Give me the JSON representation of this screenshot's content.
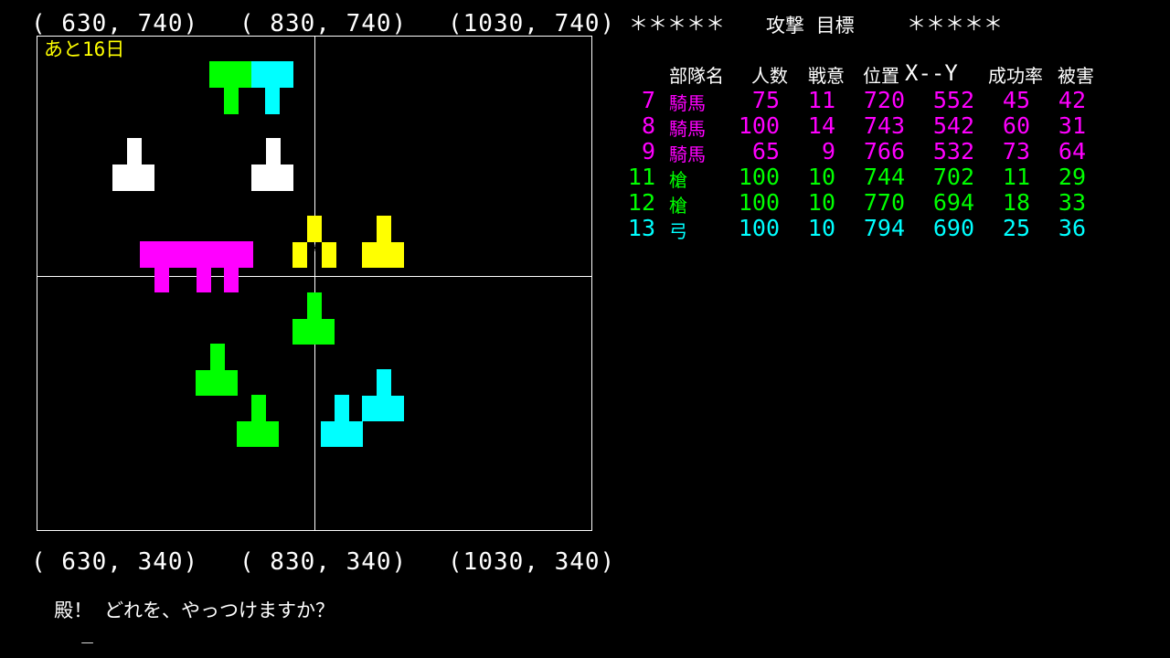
{
  "coords": {
    "top": [
      "( 630, 740)",
      "( 830, 740)",
      "(1030, 740)"
    ],
    "bottom": [
      "( 630, 340)",
      "( 830, 340)",
      "(1030, 340)"
    ]
  },
  "map": {
    "days_left": "あと16日",
    "colors": {
      "cavalry": "#ff00ff",
      "spear": "#00ff00",
      "archer": "#00ffff",
      "enemy_yellow": "#ffff00",
      "enemy_white": "#ffffff"
    },
    "cursor_icon": "asterisk-icon"
  },
  "header": {
    "left_stars": "＊＊＊＊＊",
    "title": "攻撃 目標",
    "right_stars": "＊＊＊＊＊"
  },
  "table": {
    "columns": {
      "unit_name": "部隊名",
      "troops": "人数",
      "morale": "戦意",
      "position": "位置",
      "xy": "X--Y",
      "success": "成功率",
      "damage": "被害"
    },
    "rows": [
      {
        "id": "7",
        "type": "騎馬",
        "troops": "75",
        "morale": "11",
        "x": "720",
        "y": "552",
        "success": "45",
        "damage": "42",
        "color": "#ff00ff"
      },
      {
        "id": "8",
        "type": "騎馬",
        "troops": "100",
        "morale": "14",
        "x": "743",
        "y": "542",
        "success": "60",
        "damage": "31",
        "color": "#ff00ff"
      },
      {
        "id": "9",
        "type": "騎馬",
        "troops": "65",
        "morale": "9",
        "x": "766",
        "y": "532",
        "success": "73",
        "damage": "64",
        "color": "#ff00ff"
      },
      {
        "id": "11",
        "type": "槍",
        "troops": "100",
        "morale": "10",
        "x": "744",
        "y": "702",
        "success": "11",
        "damage": "29",
        "color": "#00ff00"
      },
      {
        "id": "12",
        "type": "槍",
        "troops": "100",
        "morale": "10",
        "x": "770",
        "y": "694",
        "success": "18",
        "damage": "33",
        "color": "#00ff00"
      },
      {
        "id": "13",
        "type": "弓",
        "troops": "100",
        "morale": "10",
        "x": "794",
        "y": "690",
        "success": "25",
        "damage": "36",
        "color": "#00ffff"
      }
    ]
  },
  "prompt": {
    "text": "殿！ どれを、やっつけますか？",
    "cursor": "_"
  }
}
